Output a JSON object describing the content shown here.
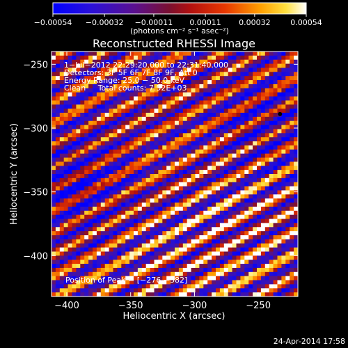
{
  "chart_data": {
    "type": "heatmap",
    "title": "Reconstructed RHESSI Image",
    "xlabel": "Heliocentric X (arcsec)",
    "ylabel": "Heliocentric Y (arcsec)",
    "xlim": [
      -412,
      -219
    ],
    "ylim": [
      -432,
      -240
    ],
    "x_ticks": [
      -400,
      -350,
      -300,
      -250
    ],
    "x_tick_labels": [
      "−400",
      "−350",
      "−300",
      "−250"
    ],
    "y_ticks": [
      -250,
      -300,
      -350,
      -400
    ],
    "y_tick_labels": [
      "−250",
      "−300",
      "−350",
      "−400"
    ],
    "colorbar": {
      "ticks": [
        -0.00054,
        -0.00032,
        -0.00011,
        0.00011,
        0.00032,
        0.00054
      ],
      "tick_labels": [
        "−0.00054",
        "−0.00032",
        "−0.00011",
        "0.00011",
        "0.00032",
        "0.00054"
      ],
      "unit_label": "(photons cm⁻² s⁻¹ asec⁻²)",
      "colormap": [
        "#0000ff",
        "#3b00c8",
        "#7a0060",
        "#b01010",
        "#e83000",
        "#ff7800",
        "#ffd000",
        "#ffffff"
      ]
    },
    "annotations": [
      "1−Jul−2012 22:29:20.000 to 22:31:40.000",
      "Detectors: 3F 5F 6F 7F 8F 9F, Att 0",
      "Energy Range: 25.0 − 50.0 keV",
      "Clean     Total counts: 7.52E+03"
    ],
    "peak_label": "Position of Peak = [−276,−382]",
    "peak_position": [
      -276,
      -382
    ],
    "values": {
      "vmin": -0.00054,
      "vmax": 0.00054,
      "pattern": "diagonal fringes running upper-left to lower-right"
    }
  },
  "footer": {
    "timestamp": "24-Apr-2014 17:58"
  }
}
